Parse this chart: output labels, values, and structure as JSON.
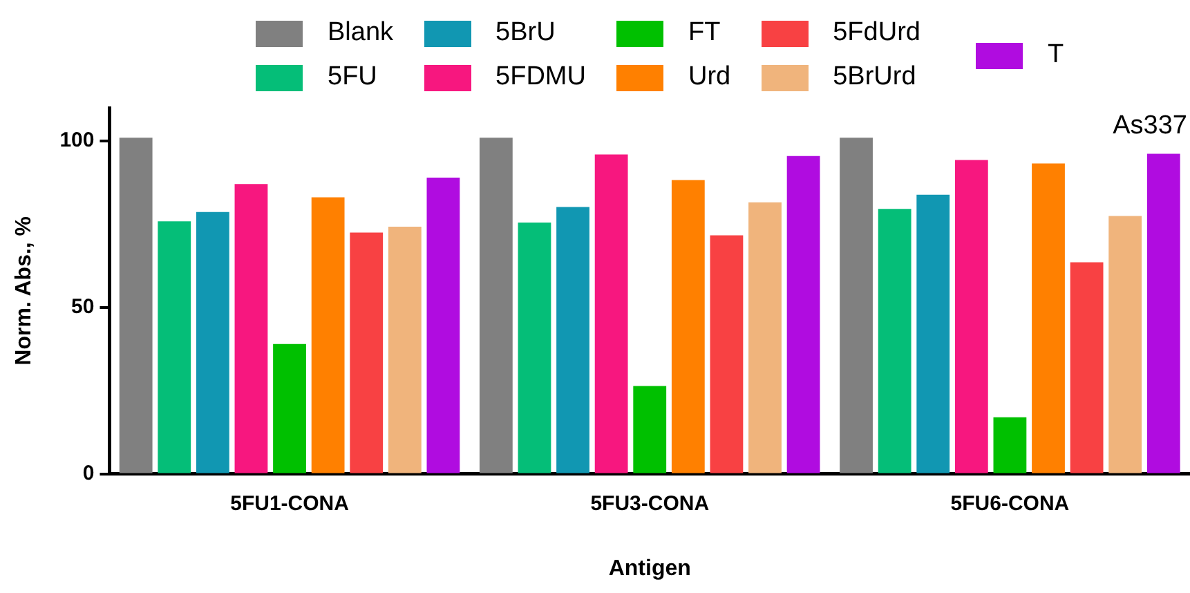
{
  "chart_data": {
    "type": "bar",
    "xlabel": "Antigen",
    "ylabel": "Norm. Abs., %",
    "annotations": [
      "As337"
    ],
    "categories": [
      "5FU1-CONA",
      "5FU3-CONA",
      "5FU6-CONA"
    ],
    "series": [
      {
        "name": "Blank",
        "color": "#808080",
        "values": [
          101,
          101,
          101
        ]
      },
      {
        "name": "5FU",
        "color": "#05be78",
        "values": [
          75.9,
          75.5,
          79.6
        ]
      },
      {
        "name": "5BrU",
        "color": "#1197b2",
        "values": [
          78.7,
          80.2,
          83.9
        ]
      },
      {
        "name": "5FDMU",
        "color": "#f7177f",
        "values": [
          87.1,
          96.0,
          94.3
        ]
      },
      {
        "name": "FT",
        "color": "#00c000",
        "values": [
          39.0,
          26.4,
          17.0
        ]
      },
      {
        "name": "Urd",
        "color": "#ff8000",
        "values": [
          83.1,
          88.3,
          93.3
        ]
      },
      {
        "name": "5FdUrd",
        "color": "#f84143",
        "values": [
          72.5,
          71.7,
          63.6
        ]
      },
      {
        "name": "5BrUrd",
        "color": "#f0b47c",
        "values": [
          74.3,
          81.6,
          77.5
        ]
      },
      {
        "name": "T",
        "color": "#b00ce0",
        "values": [
          89.0,
          95.5,
          96.2
        ]
      }
    ],
    "ylim": [
      0,
      110
    ],
    "yticks": [
      0,
      50,
      100
    ],
    "grid": false,
    "legend": "top"
  }
}
